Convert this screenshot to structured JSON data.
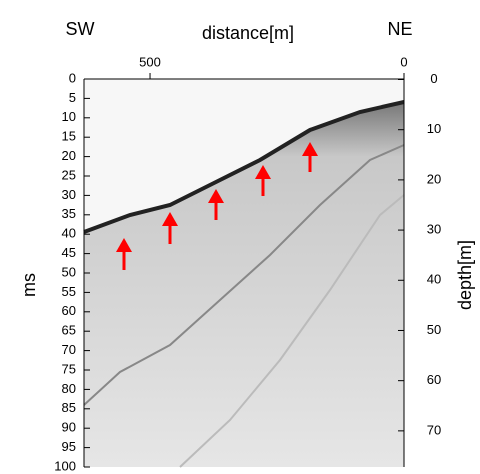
{
  "chart_data": {
    "type": "profile",
    "left_label": "SW",
    "x_label": "distance[m]",
    "right_label": "NE",
    "y_label": "ms",
    "y2_label": "depth[m]",
    "xlim": [
      630,
      0
    ],
    "xticks": [
      500,
      0
    ],
    "ylim": [
      0,
      100
    ],
    "yticks": [
      0,
      5,
      10,
      15,
      20,
      25,
      30,
      35,
      40,
      45,
      50,
      55,
      60,
      65,
      70,
      75,
      80,
      85,
      90,
      95,
      100
    ],
    "y2lim": [
      -0.1,
      77.2
    ],
    "y2ticks": [
      0,
      10,
      20,
      30,
      40,
      50,
      60,
      70
    ]
  }
}
